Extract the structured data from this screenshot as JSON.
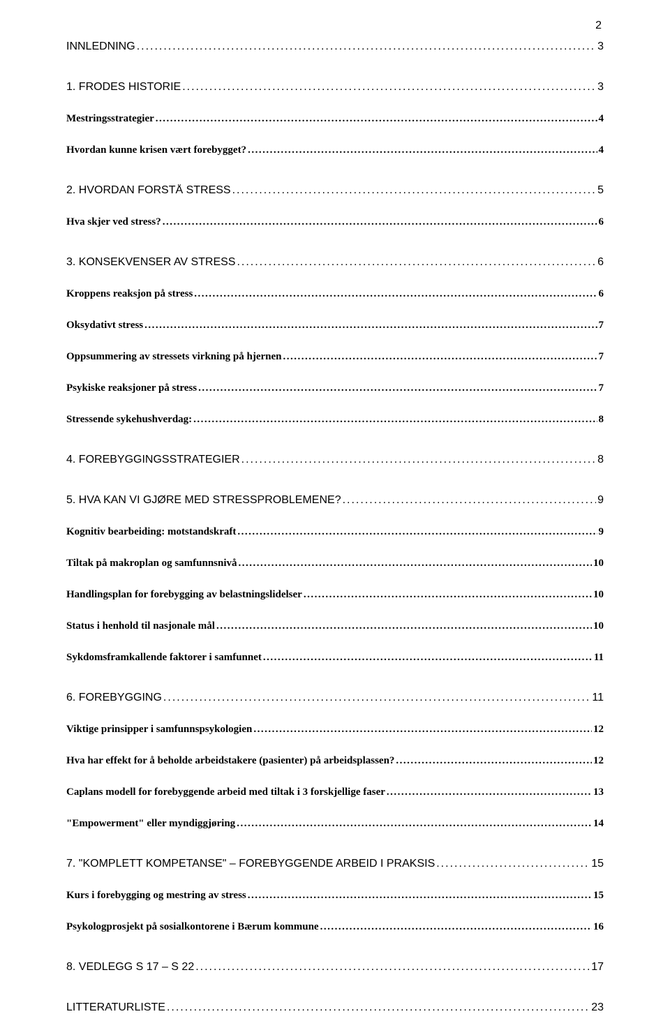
{
  "page_number": "2",
  "entries": [
    {
      "level": 1,
      "label": "INNLEDNING",
      "page": "3"
    },
    {
      "level": 1,
      "label": "1. FRODES HISTORIE",
      "page": "3"
    },
    {
      "level": 2,
      "label": "Mestringsstrategier",
      "page": "4"
    },
    {
      "level": 2,
      "label": "Hvordan kunne krisen vært forebygget?",
      "page": "4"
    },
    {
      "level": 1,
      "label": "2. HVORDAN FORSTÅ STRESS",
      "page": "5"
    },
    {
      "level": 2,
      "label": "Hva skjer ved stress?",
      "page": "6"
    },
    {
      "level": 1,
      "label": "3. KONSEKVENSER AV STRESS",
      "page": "6"
    },
    {
      "level": 2,
      "label": "Kroppens reaksjon på stress",
      "page": "6"
    },
    {
      "level": 2,
      "label": "Oksydativt stress",
      "page": "7"
    },
    {
      "level": 2,
      "label": "Oppsummering av stressets virkning på hjernen",
      "page": "7"
    },
    {
      "level": 2,
      "label": "Psykiske reaksjoner på stress",
      "page": "7"
    },
    {
      "level": 2,
      "label": "Stressende sykehushverdag:",
      "page": "8"
    },
    {
      "level": 1,
      "label": "4. FOREBYGGINGSSTRATEGIER",
      "page": "8"
    },
    {
      "level": 1,
      "label": "5. HVA KAN VI GJØRE MED STRESSPROBLEMENE?",
      "page": "9"
    },
    {
      "level": 2,
      "label": "Kognitiv bearbeiding: motstandskraft",
      "page": "9"
    },
    {
      "level": 2,
      "label": "Tiltak på makroplan og samfunnsnivå",
      "page": "10"
    },
    {
      "level": 2,
      "label": "Handlingsplan for forebygging av belastningslidelser",
      "page": "10"
    },
    {
      "level": 2,
      "label": "Status i henhold til nasjonale mål",
      "page": "10"
    },
    {
      "level": 2,
      "label": "Sykdomsframkallende faktorer i samfunnet",
      "page": "11"
    },
    {
      "level": 1,
      "label": "6. FOREBYGGING",
      "page": "11"
    },
    {
      "level": 2,
      "label": "Viktige prinsipper i samfunnspsykologien",
      "page": "12"
    },
    {
      "level": 2,
      "label": "Hva har effekt for å beholde arbeidstakere (pasienter) på arbeidsplassen?",
      "page": "12"
    },
    {
      "level": 2,
      "label": "Caplans modell for forebyggende arbeid med tiltak i 3 forskjellige faser",
      "page": "13"
    },
    {
      "level": 2,
      "label": "\"Empowerment\" eller myndiggjøring",
      "page": "14"
    },
    {
      "level": 1,
      "label": "7. \"KOMPLETT KOMPETANSE\" – FOREBYGGENDE ARBEID I PRAKSIS",
      "page": "15"
    },
    {
      "level": 2,
      "label": "Kurs i forebygging og mestring av stress",
      "page": "15"
    },
    {
      "level": 2,
      "label": "Psykologprosjekt på sosialkontorene i Bærum kommune",
      "page": "16"
    },
    {
      "level": 1,
      "label": "8. VEDLEGG S 17 – S 22",
      "page": "17"
    },
    {
      "level": 1,
      "label": "LITTERATURLISTE",
      "page": "23"
    }
  ]
}
